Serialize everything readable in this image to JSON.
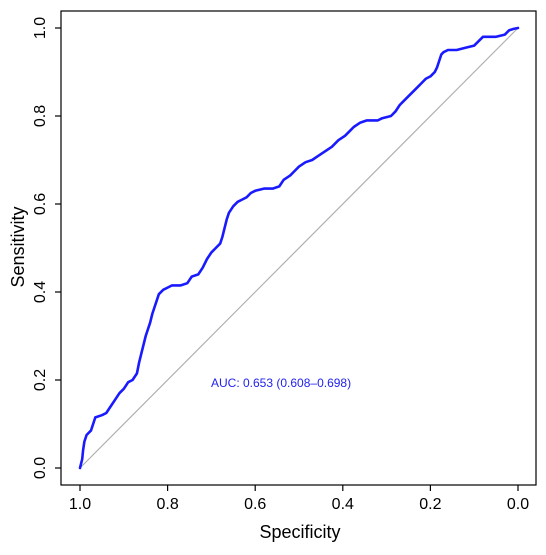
{
  "chart_data": {
    "type": "line",
    "title": "",
    "xlabel": "Specificity",
    "ylabel": "Sensitivity",
    "xlim": [
      1.0,
      0.0
    ],
    "ylim": [
      0.0,
      1.0
    ],
    "x_reversed": true,
    "grid": false,
    "legend": "none",
    "x_ticks": [
      1.0,
      0.8,
      0.6,
      0.4,
      0.2,
      0.0
    ],
    "x_tick_labels": [
      "1.0",
      "0.8",
      "0.6",
      "0.4",
      "0.2",
      "0.0"
    ],
    "y_ticks": [
      0.0,
      0.2,
      0.4,
      0.6,
      0.8,
      1.0
    ],
    "y_tick_labels": [
      "0.0",
      "0.2",
      "0.4",
      "0.6",
      "0.8",
      "1.0"
    ],
    "annotation": "AUC: 0.653 (0.608–0.698)",
    "colors": {
      "roc": "#1a1aff",
      "annotation": "#2222ee",
      "reference": "#b0b0b0",
      "axis": "#000000"
    },
    "series": [
      {
        "values": [
          [
            1.0,
            0.0
          ],
          [
            0.995,
            0.02
          ],
          [
            0.993,
            0.04
          ],
          [
            0.99,
            0.06
          ],
          [
            0.985,
            0.075
          ],
          [
            0.975,
            0.085
          ],
          [
            0.97,
            0.1
          ],
          [
            0.965,
            0.115
          ],
          [
            0.95,
            0.12
          ],
          [
            0.94,
            0.125
          ],
          [
            0.93,
            0.14
          ],
          [
            0.92,
            0.155
          ],
          [
            0.91,
            0.17
          ],
          [
            0.9,
            0.18
          ],
          [
            0.89,
            0.195
          ],
          [
            0.88,
            0.2
          ],
          [
            0.87,
            0.215
          ],
          [
            0.865,
            0.24
          ],
          [
            0.86,
            0.26
          ],
          [
            0.855,
            0.28
          ],
          [
            0.85,
            0.3
          ],
          [
            0.845,
            0.315
          ],
          [
            0.84,
            0.33
          ],
          [
            0.835,
            0.35
          ],
          [
            0.83,
            0.365
          ],
          [
            0.825,
            0.38
          ],
          [
            0.82,
            0.395
          ],
          [
            0.81,
            0.405
          ],
          [
            0.8,
            0.41
          ],
          [
            0.79,
            0.415
          ],
          [
            0.77,
            0.415
          ],
          [
            0.755,
            0.42
          ],
          [
            0.745,
            0.435
          ],
          [
            0.73,
            0.44
          ],
          [
            0.72,
            0.455
          ],
          [
            0.71,
            0.475
          ],
          [
            0.7,
            0.49
          ],
          [
            0.69,
            0.5
          ],
          [
            0.68,
            0.51
          ],
          [
            0.675,
            0.525
          ],
          [
            0.67,
            0.545
          ],
          [
            0.665,
            0.565
          ],
          [
            0.66,
            0.58
          ],
          [
            0.65,
            0.595
          ],
          [
            0.64,
            0.605
          ],
          [
            0.63,
            0.61
          ],
          [
            0.62,
            0.615
          ],
          [
            0.61,
            0.625
          ],
          [
            0.6,
            0.63
          ],
          [
            0.58,
            0.635
          ],
          [
            0.56,
            0.635
          ],
          [
            0.545,
            0.64
          ],
          [
            0.535,
            0.655
          ],
          [
            0.52,
            0.665
          ],
          [
            0.51,
            0.675
          ],
          [
            0.5,
            0.685
          ],
          [
            0.485,
            0.695
          ],
          [
            0.47,
            0.7
          ],
          [
            0.455,
            0.71
          ],
          [
            0.44,
            0.72
          ],
          [
            0.425,
            0.73
          ],
          [
            0.41,
            0.745
          ],
          [
            0.395,
            0.755
          ],
          [
            0.385,
            0.765
          ],
          [
            0.375,
            0.775
          ],
          [
            0.36,
            0.785
          ],
          [
            0.345,
            0.79
          ],
          [
            0.32,
            0.79
          ],
          [
            0.31,
            0.795
          ],
          [
            0.29,
            0.8
          ],
          [
            0.28,
            0.81
          ],
          [
            0.27,
            0.825
          ],
          [
            0.26,
            0.835
          ],
          [
            0.25,
            0.845
          ],
          [
            0.24,
            0.855
          ],
          [
            0.23,
            0.865
          ],
          [
            0.22,
            0.875
          ],
          [
            0.21,
            0.885
          ],
          [
            0.2,
            0.89
          ],
          [
            0.19,
            0.9
          ],
          [
            0.185,
            0.91
          ],
          [
            0.18,
            0.925
          ],
          [
            0.175,
            0.94
          ],
          [
            0.17,
            0.945
          ],
          [
            0.16,
            0.95
          ],
          [
            0.14,
            0.95
          ],
          [
            0.12,
            0.955
          ],
          [
            0.1,
            0.96
          ],
          [
            0.09,
            0.97
          ],
          [
            0.08,
            0.98
          ],
          [
            0.05,
            0.98
          ],
          [
            0.03,
            0.985
          ],
          [
            0.02,
            0.995
          ],
          [
            0.01,
            0.998
          ],
          [
            0.0,
            1.0
          ]
        ]
      }
    ]
  }
}
